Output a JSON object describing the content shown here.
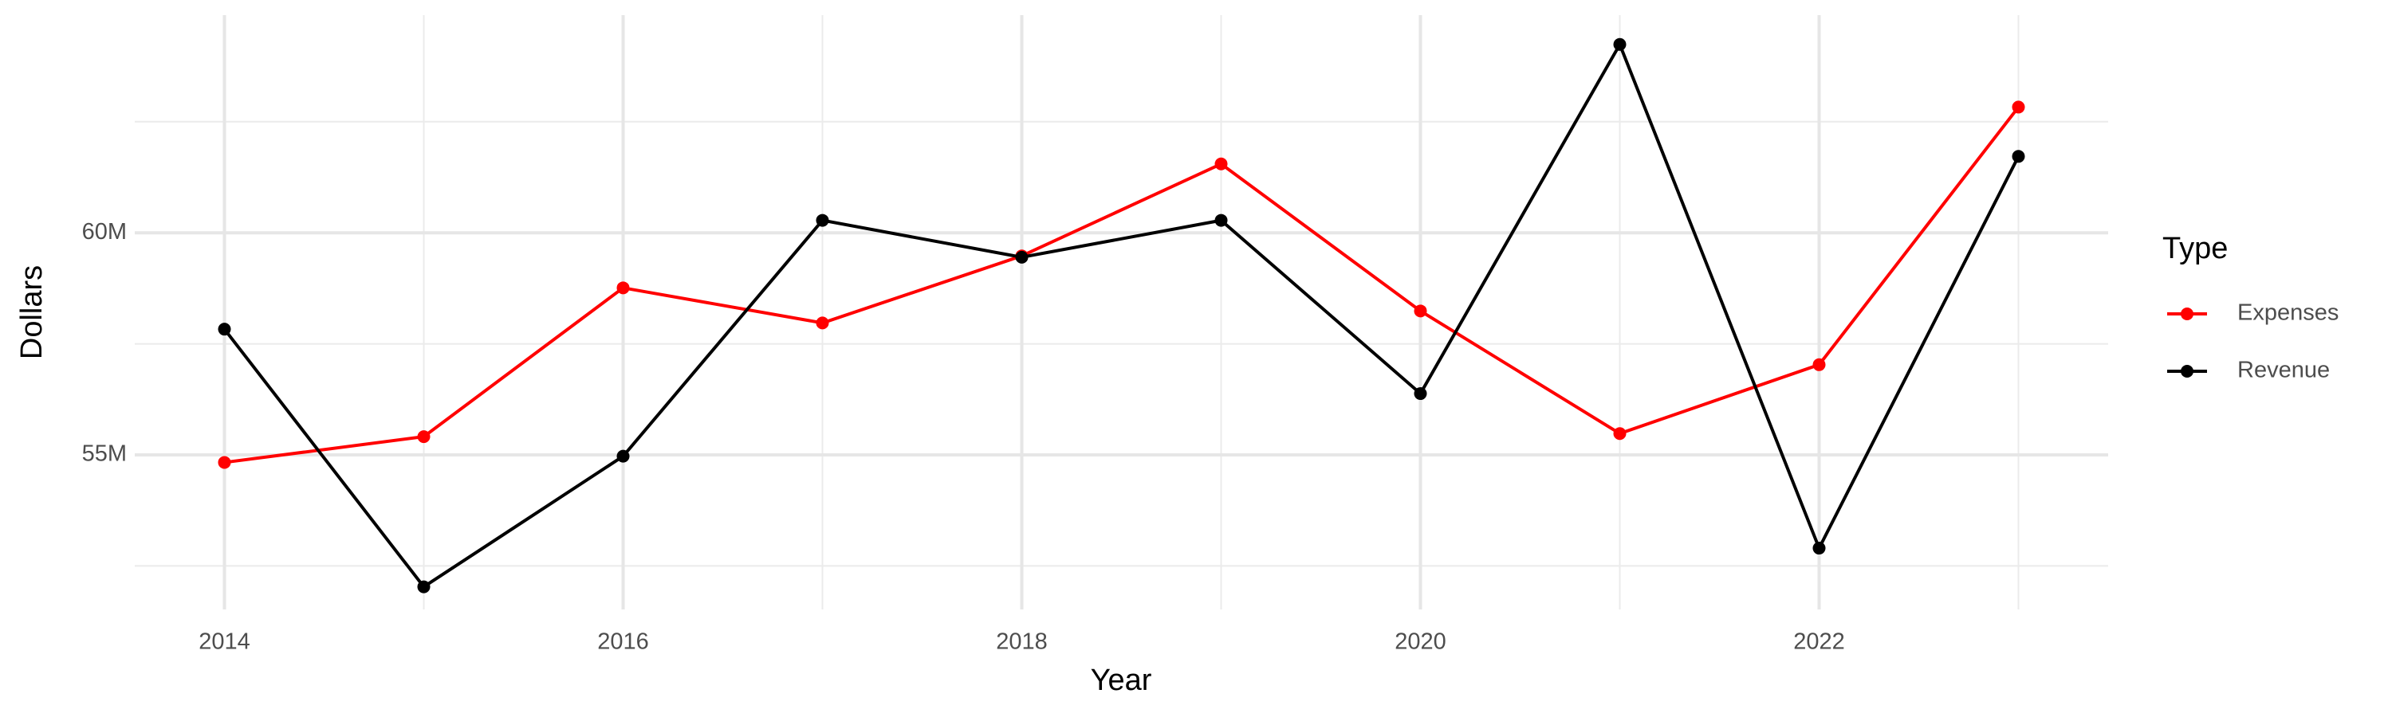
{
  "chart_data": {
    "type": "line",
    "x_label": "Year",
    "y_label": "Dollars",
    "legend_title": "Type",
    "x": [
      2014,
      2015,
      2016,
      2017,
      2018,
      2019,
      2020,
      2021,
      2022,
      2023
    ],
    "series": [
      {
        "name": "Expenses",
        "color": "#ff0000",
        "values": [
          54830000,
          55410000,
          58760000,
          57970000,
          59480000,
          61550000,
          58240000,
          55480000,
          57030000,
          62830000
        ]
      },
      {
        "name": "Revenue",
        "color": "#000000",
        "values": [
          57830000,
          52030000,
          54970000,
          60280000,
          59450000,
          60280000,
          56380000,
          64240000,
          52900000,
          61720000
        ]
      }
    ],
    "xlim": [
      2013.55,
      2023.45
    ],
    "xticks": [
      2014,
      2016,
      2018,
      2020,
      2022
    ],
    "xminorticks": [
      2015,
      2017,
      2019,
      2021,
      2023
    ],
    "ylim": [
      51520000,
      64900000
    ],
    "yticks": [
      {
        "value": 55000000,
        "label": "55M"
      },
      {
        "value": 60000000,
        "label": "60M"
      }
    ],
    "yminorticks": [
      52500000,
      57500000,
      62500000
    ],
    "grid": true,
    "legend_position": "right"
  }
}
